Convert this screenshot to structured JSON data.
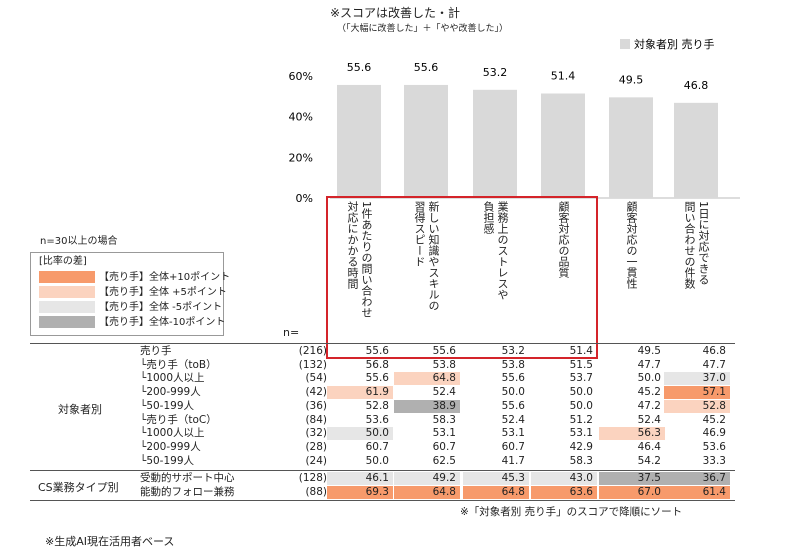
{
  "note_top": "※スコアは改善した・計",
  "note_top_sub": "（「大幅に改善した」＋「やや改善した」）",
  "chart_data": {
    "type": "bar",
    "legend": [
      "対象者別 売り手"
    ],
    "legend_position": "top-right",
    "categories": [
      "対応にかかる時間 1件あたりの問い合わせ",
      "新しい知識やスキルの習得スピード",
      "業務上のストレスや負担感",
      "顧客対応の品質",
      "顧客対応の一貫性",
      "1日に対応できる問い合わせの件数"
    ],
    "values": [
      55.6,
      55.6,
      53.2,
      51.4,
      49.5,
      46.8
    ],
    "y_ticks": [
      "60%",
      "40%",
      "20%",
      "0%"
    ],
    "ylim": [
      0,
      60
    ],
    "bar_color": "#d9d9d9",
    "highlight_color": "#d4242a"
  },
  "col_headers": [
    [
      "1件あたりの問い合わせ",
      "対応にかかる時間"
    ],
    [
      "新しい知識やスキルの",
      "習得スピード"
    ],
    [
      "業務上のストレスや",
      "負担感"
    ],
    [
      "顧客対応の品質"
    ],
    [
      "顧客対応の一貫性"
    ],
    [
      "1日に対応できる",
      "問い合わせの件数"
    ]
  ],
  "n_label": "n=",
  "n30_note": "n=30以上の場合",
  "legend_title": "[比率の差]",
  "diff_legend": [
    {
      "label": "【売り手】全体+10ポイント",
      "color": "#f79a6b"
    },
    {
      "label": "【売り手】全体 +5ポイント",
      "color": "#fbd3bf"
    },
    {
      "label": "【売り手】全体 -5ポイント",
      "color": "#e6e6e6"
    },
    {
      "label": "【売り手】全体-10ポイント",
      "color": "#b0b0b0"
    }
  ],
  "groups": {
    "g1": "対象者別",
    "g2": "CS業務タイプ別"
  },
  "rows": [
    {
      "label": "売り手",
      "n": "(216)",
      "values": [
        "55.6",
        "55.6",
        "53.2",
        "51.4",
        "49.5",
        "46.8"
      ],
      "shade": [
        "",
        "",
        "",
        "",
        "",
        ""
      ]
    },
    {
      "label": "└売り手（toB）",
      "n": "(132)",
      "values": [
        "56.8",
        "53.8",
        "53.8",
        "51.5",
        "47.7",
        "47.7"
      ],
      "shade": [
        "",
        "",
        "",
        "",
        "",
        ""
      ]
    },
    {
      "label": "└1000人以上",
      "n": "(54)",
      "values": [
        "55.6",
        "64.8",
        "55.6",
        "53.7",
        "50.0",
        "37.0"
      ],
      "shade": [
        "",
        "p5",
        "",
        "",
        "",
        "m5"
      ]
    },
    {
      "label": "└200-999人",
      "n": "(42)",
      "values": [
        "61.9",
        "52.4",
        "50.0",
        "50.0",
        "45.2",
        "57.1"
      ],
      "shade": [
        "p5",
        "",
        "",
        "",
        "",
        "p10"
      ]
    },
    {
      "label": "└50-199人",
      "n": "(36)",
      "values": [
        "52.8",
        "38.9",
        "55.6",
        "50.0",
        "47.2",
        "52.8"
      ],
      "shade": [
        "",
        "m10",
        "",
        "",
        "",
        "p5"
      ]
    },
    {
      "label": "└売り手（toC）",
      "n": "(84)",
      "values": [
        "53.6",
        "58.3",
        "52.4",
        "51.2",
        "52.4",
        "45.2"
      ],
      "shade": [
        "",
        "",
        "",
        "",
        "",
        ""
      ]
    },
    {
      "label": "└1000人以上",
      "n": "(32)",
      "values": [
        "50.0",
        "53.1",
        "53.1",
        "53.1",
        "56.3",
        "46.9"
      ],
      "shade": [
        "m5",
        "",
        "",
        "",
        "p5",
        ""
      ]
    },
    {
      "label": "└200-999人",
      "n": "(28)",
      "values": [
        "60.7",
        "60.7",
        "60.7",
        "42.9",
        "46.4",
        "53.6"
      ],
      "shade": [
        "",
        "",
        "",
        "",
        "",
        ""
      ]
    },
    {
      "label": "└50-199人",
      "n": "(24)",
      "values": [
        "50.0",
        "62.5",
        "41.7",
        "58.3",
        "54.2",
        "33.3"
      ],
      "shade": [
        "",
        "",
        "",
        "",
        "",
        ""
      ]
    },
    {
      "label": "受動的サポート中心",
      "n": "(128)",
      "values": [
        "46.1",
        "49.2",
        "45.3",
        "43.0",
        "37.5",
        "36.7"
      ],
      "shade": [
        "m5",
        "m5",
        "m5",
        "m5",
        "m10",
        "m10"
      ]
    },
    {
      "label": "能動的フォロー兼務",
      "n": "(88)",
      "values": [
        "69.3",
        "64.8",
        "64.8",
        "63.6",
        "67.0",
        "61.4"
      ],
      "shade": [
        "p10",
        "p10",
        "p10",
        "p10",
        "p10",
        "p10"
      ]
    }
  ],
  "sort_note": "※「対象者別 売り手」のスコアで降順にソート",
  "footer": "※生成AI現在活用者ベース"
}
